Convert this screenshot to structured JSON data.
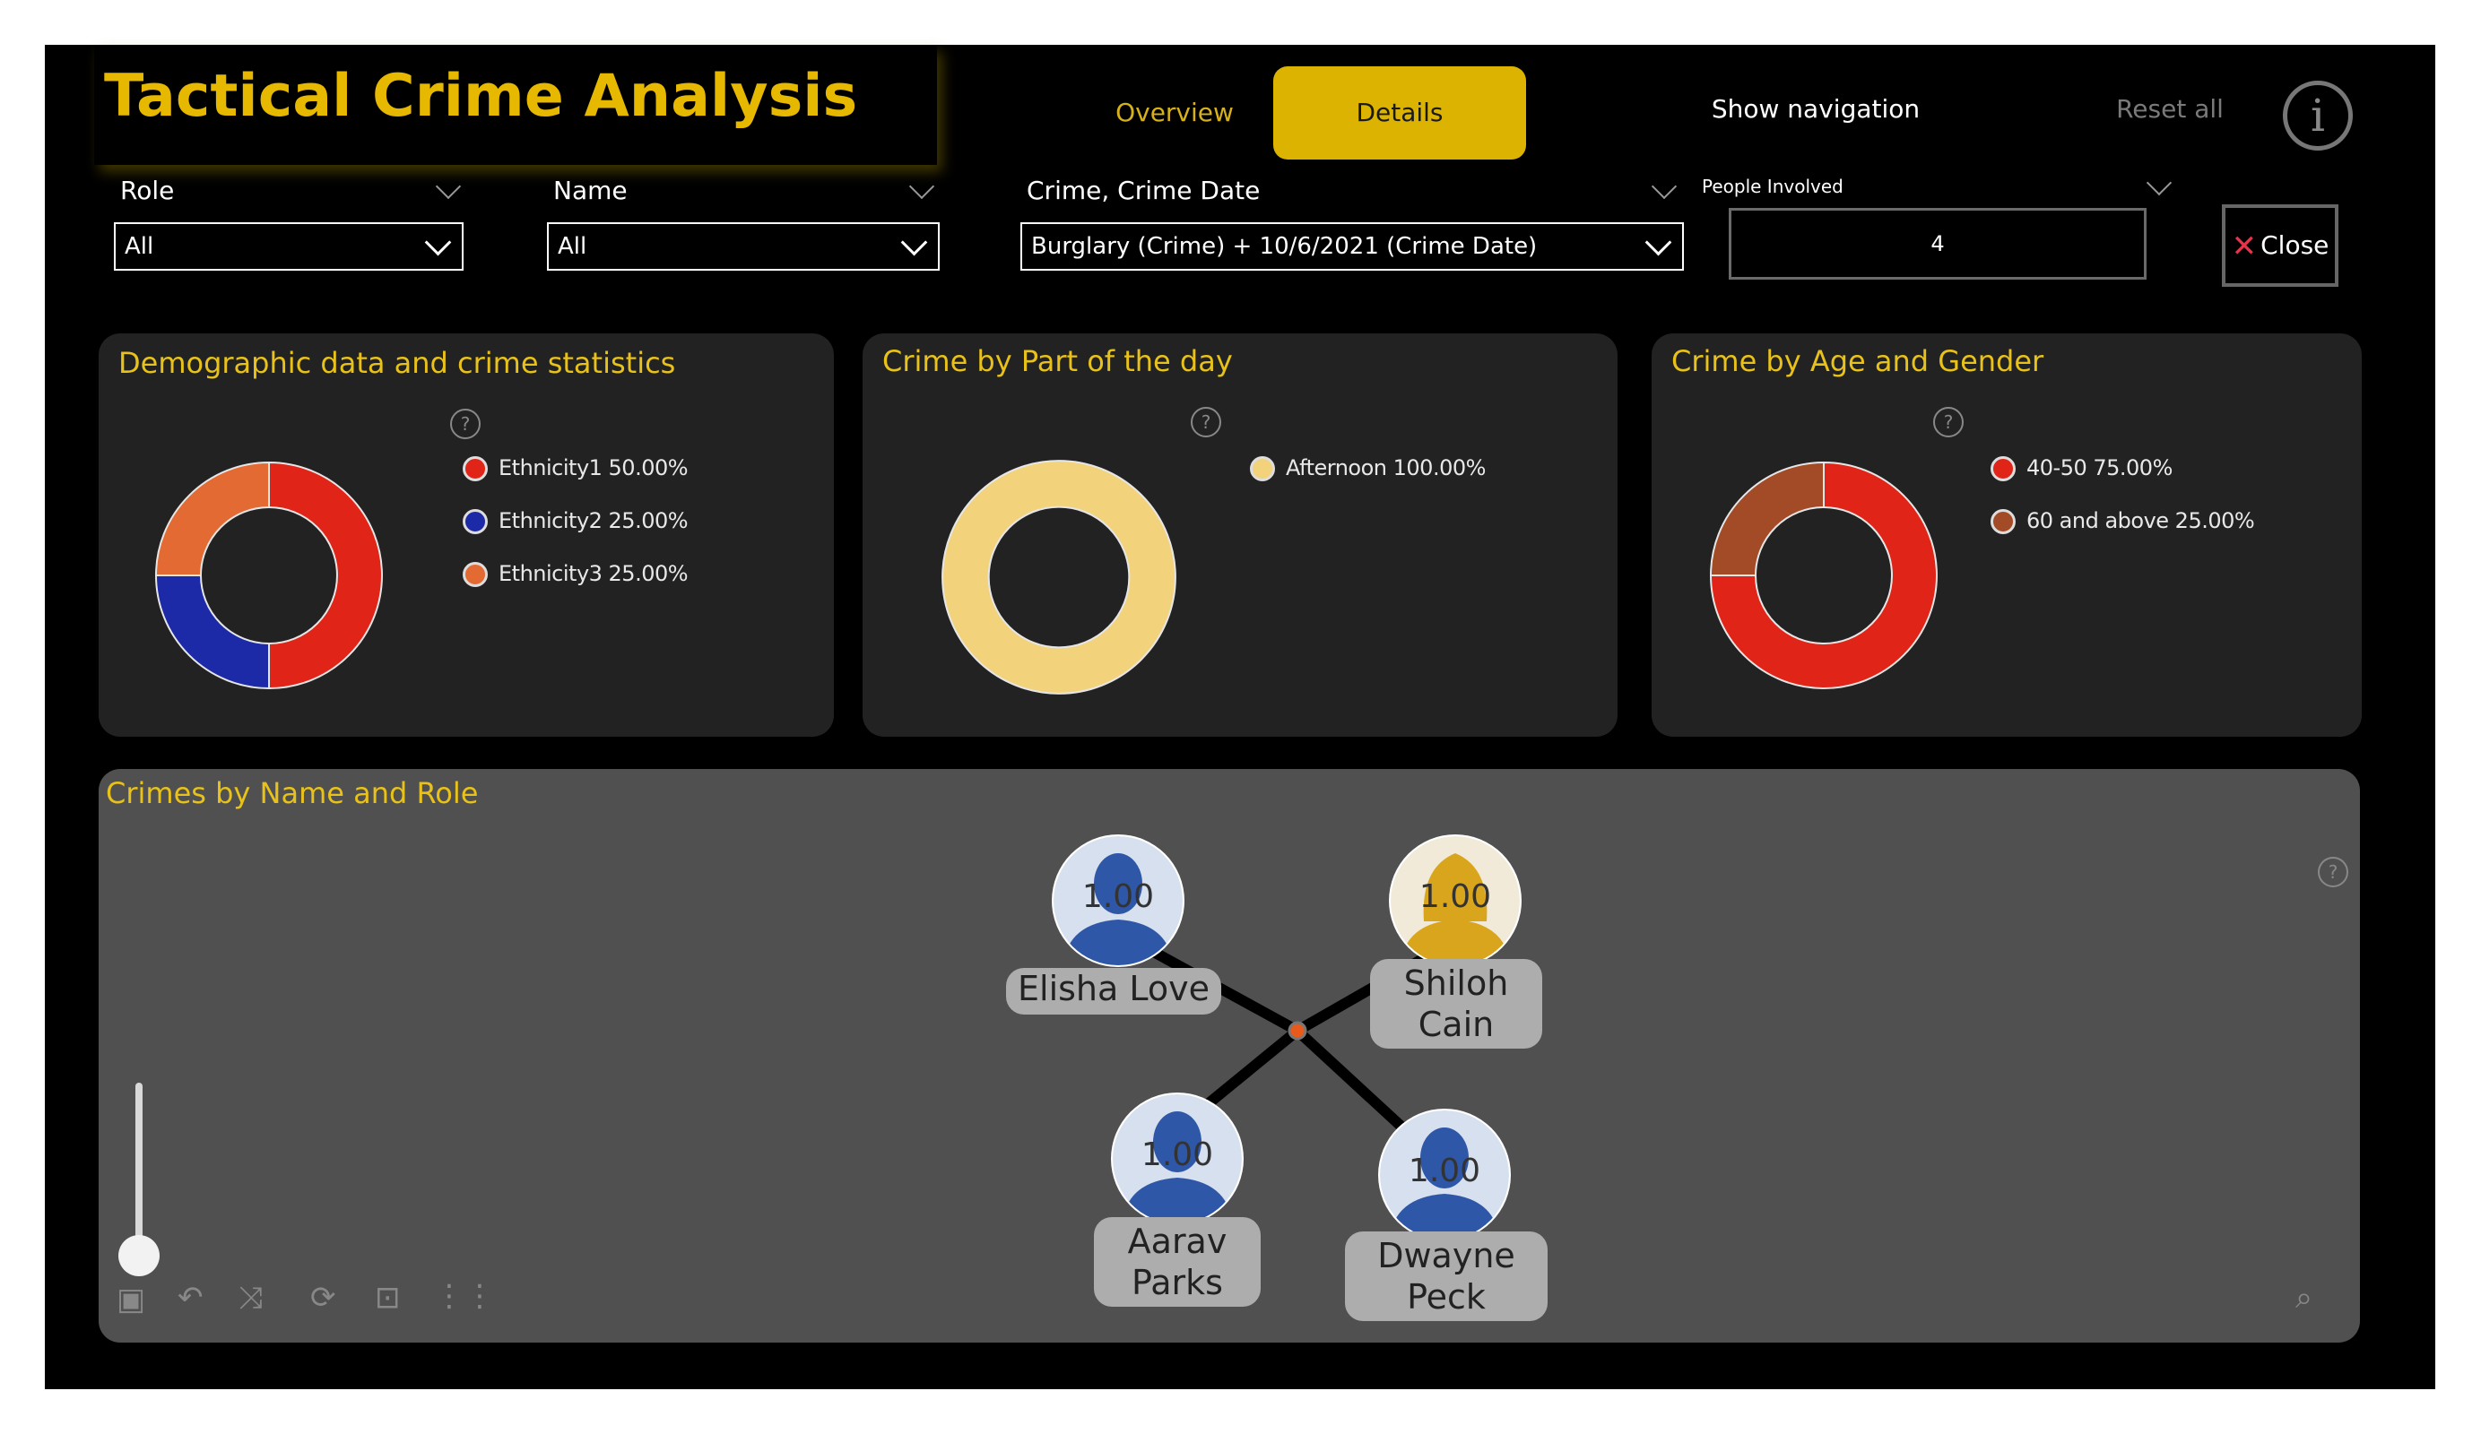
{
  "header": {
    "title": "Tactical Crime Analysis",
    "nav": {
      "overview": "Overview",
      "details": "Details",
      "show_navigation": "Show navigation",
      "reset_all": "Reset all",
      "info": "i"
    }
  },
  "filters": {
    "role": {
      "label": "Role",
      "value": "All"
    },
    "name": {
      "label": "Name",
      "value": "All"
    },
    "crime": {
      "label": "Crime, Crime Date",
      "value": "Burglary (Crime) + 10/6/2021 (Crime Date)"
    },
    "people": {
      "label": "People Involved",
      "value": "4"
    },
    "close": "Close"
  },
  "help_glyph": "?",
  "chart_data": [
    {
      "type": "pie",
      "title": "Demographic data and crime statistics",
      "categories": [
        "Ethnicity1",
        "Ethnicity2",
        "Ethnicity3"
      ],
      "values": [
        50,
        25,
        25
      ],
      "colors": [
        "#e02418",
        "#1c2aa8",
        "#e46a34"
      ],
      "legend_labels": [
        "Ethnicity1 50.00%",
        "Ethnicity2 25.00%",
        "Ethnicity3 25.00%"
      ],
      "legend": "right"
    },
    {
      "type": "pie",
      "title": "Crime by Part of the day",
      "categories": [
        "Afternoon"
      ],
      "values": [
        100
      ],
      "colors": [
        "#f2d27a"
      ],
      "legend_labels": [
        "Afternoon 100.00%"
      ],
      "legend": "right"
    },
    {
      "type": "pie",
      "title": "Crime by Age and Gender",
      "categories": [
        "40-50",
        "60 and above"
      ],
      "values": [
        75,
        25
      ],
      "colors": [
        "#e02418",
        "#a34a26"
      ],
      "legend_labels": [
        "40-50 75.00%",
        "60 and above 25.00%"
      ],
      "legend": "right"
    }
  ],
  "network": {
    "title": "Crimes by Name and Role",
    "nodes": [
      {
        "name": "Elisha Love",
        "value": "1.00",
        "gender": "male"
      },
      {
        "name": "Shiloh Cain",
        "value": "1.00",
        "gender": "female"
      },
      {
        "name": "Aarav Parks",
        "value": "1.00",
        "gender": "male"
      },
      {
        "name": "Dwayne Peck",
        "value": "1.00",
        "gender": "male"
      }
    ],
    "colors": {
      "male": "#2f57a8",
      "female": "#d9a51c"
    }
  }
}
